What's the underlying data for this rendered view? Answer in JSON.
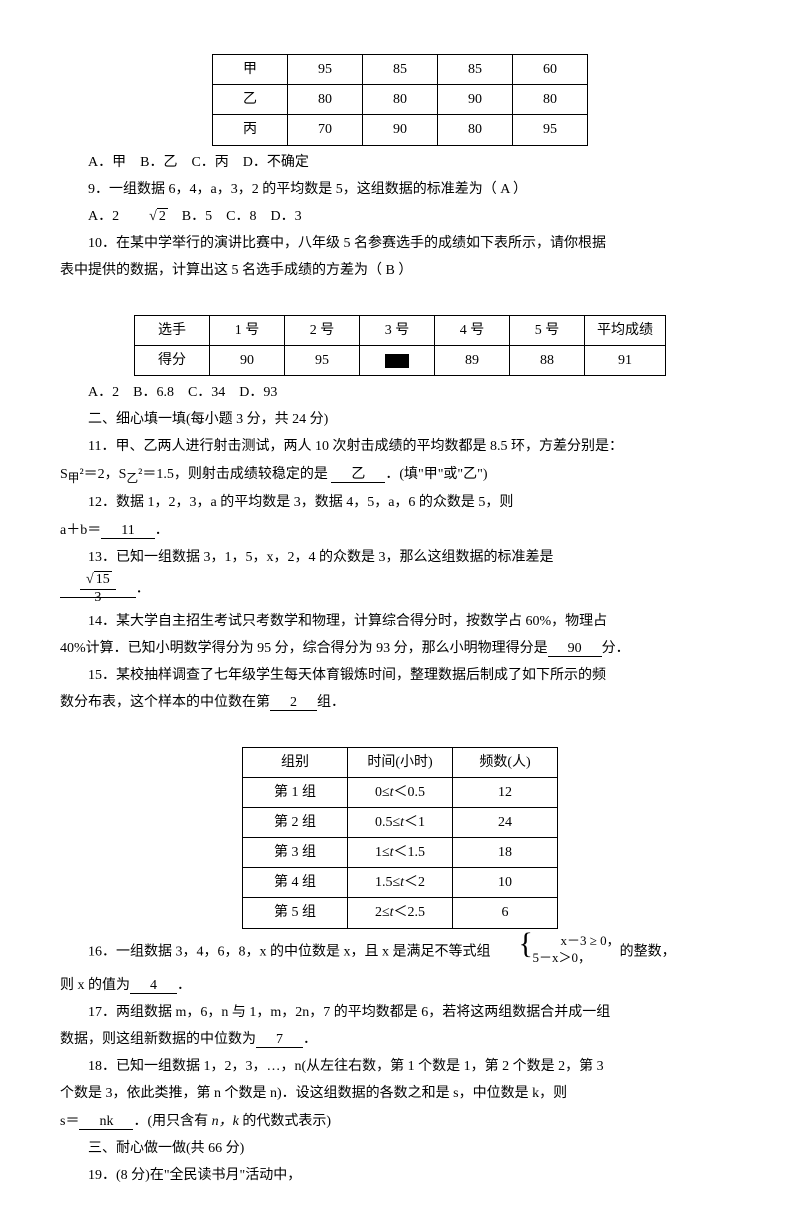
{
  "table1": {
    "rows": [
      [
        "甲",
        "95",
        "85",
        "85",
        "60"
      ],
      [
        "乙",
        "80",
        "80",
        "90",
        "80"
      ],
      [
        "丙",
        "70",
        "90",
        "80",
        "95"
      ]
    ],
    "col_widths": [
      "60px",
      "60px",
      "60px",
      "60px",
      "60px"
    ]
  },
  "q8_options": "A．甲　B．乙　C．丙　D．不确定",
  "q9_text": "9．一组数据 6，4，a，3，2 的平均数是 5，这组数据的标准差为（ A ）",
  "q9_options_prefix": "A．2",
  "q9_sqrt": "2",
  "q9_options_suffix": "　B．5　C．8　D．3",
  "q10_a": "10．在某中学举行的演讲比赛中，八年级 5 名参赛选手的成绩如下表所示，请你根据",
  "q10_b": "表中提供的数据，计算出这 5 名选手成绩的方差为（ B ）",
  "table2": {
    "header": [
      "选手",
      "1 号",
      "2 号",
      "3 号",
      "4 号",
      "5 号",
      "平均成绩"
    ],
    "row": [
      "得分",
      "90",
      "95",
      "■",
      "89",
      "88",
      "91"
    ]
  },
  "q10_options": "A．2　B．6.8　C．34　D．93",
  "section2": "二、细心填一填(每小题 3 分，共 24 分)",
  "q11_a": "11．甲、乙两人进行射击测试，两人 10 次射击成绩的平均数都是 8.5 环，方差分别是：",
  "q11_b_prefix": "S",
  "q11_b_sub1": "甲",
  "q11_b_mid1": "²＝2，S",
  "q11_b_sub2": "乙",
  "q11_b_mid2": "²＝1.5，则射击成绩较稳定的是",
  "q11_answer": "乙",
  "q11_b_suffix": "．(填\"甲\"或\"乙\")",
  "q12_a": "12．数据 1，2，3，a 的平均数是 3，数据 4，5，a，6 的众数是 5，则",
  "q12_b_prefix": "a＋b＝",
  "q12_answer": "11",
  "q12_b_suffix": "．",
  "q13_a": "13．已知一组数据 3，1，5，x，2，4 的众数是 3，那么这组数据的标准差是",
  "q13_num": "15",
  "q13_den": "3",
  "q14_a": "14．某大学自主招生考试只考数学和物理，计算综合得分时，按数学占 60%，物理占",
  "q14_b_prefix": "40%计算．已知小明数学得分为 95 分，综合得分为 93 分，那么小明物理得分是",
  "q14_answer": "90",
  "q14_b_suffix": "分．",
  "q15_a": "15．某校抽样调查了七年级学生每天体育锻炼时间，整理数据后制成了如下所示的频",
  "q15_b_prefix": "数分布表，这个样本的中位数在第",
  "q15_answer": "2",
  "q15_b_suffix": "组．",
  "table3": {
    "header": [
      "组别",
      "时间(小时)",
      "频数(人)"
    ],
    "rows": [
      [
        "第 1 组",
        "0≤t＜0.5",
        "12"
      ],
      [
        "第 2 组",
        "0.5≤t＜1",
        "24"
      ],
      [
        "第 3 组",
        "1≤t＜1.5",
        "18"
      ],
      [
        "第 4 组",
        "1.5≤t＜2",
        "10"
      ],
      [
        "第 5 组",
        "2≤t＜2.5",
        "6"
      ]
    ]
  },
  "q16_prefix": "16．一组数据 3，4，6，8，x 的中位数是 x，且 x 是满足不等式组",
  "q16_line1": "x－3 ≥ 0，",
  "q16_line2": "5－x＞0，",
  "q16_mid": "的整数，",
  "q16_b_prefix": "则 x 的值为",
  "q16_answer": "4",
  "q16_b_suffix": "．",
  "q17_a": "17．两组数据 m，6，n 与 1，m，2n，7 的平均数都是 6，若将这两组数据合并成一组",
  "q17_b_prefix": "数据，则这组新数据的中位数为",
  "q17_answer": "7",
  "q17_b_suffix": "．",
  "q18_a": "18．已知一组数据 1，2，3，…，n(从左往右数，第 1 个数是 1，第 2 个数是 2，第 3",
  "q18_b": "个数是 3，依此类推，第 n 个数是 n)．设这组数据的各数之和是 s，中位数是 k，则",
  "q18_c_prefix": "s＝",
  "q18_answer": "nk",
  "q18_c_suffix": "．(用只含有 ",
  "q18_italic": "n，k",
  "q18_c_end": " 的代数式表示)",
  "section3": "三、耐心做一做(共 66 分)",
  "q19": "19．(8 分)在\"全民读书月\"活动中，"
}
